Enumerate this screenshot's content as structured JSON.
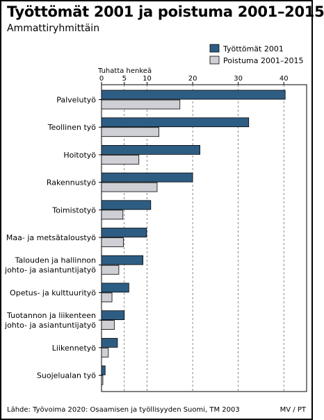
{
  "chart_data": {
    "type": "bar",
    "orientation": "horizontal",
    "title": "Työttömät 2001 ja poistuma 2001–2015",
    "subtitle": "Ammattiryhmittäin",
    "xlabel": "Tuhatta henkeä",
    "xlim": [
      0,
      45
    ],
    "xticks": [
      0,
      5,
      10,
      20,
      30,
      40
    ],
    "grid": "vertical dashed",
    "legend_position": "top-right",
    "categories": [
      [
        "Palvelutyö"
      ],
      [
        "Teollinen työ"
      ],
      [
        "Hoitotyö"
      ],
      [
        "Rakennustyö"
      ],
      [
        "Toimistotyö"
      ],
      [
        "Maa- ja metsätaloustyö"
      ],
      [
        "Talouden ja hallinnon",
        "johto- ja asiantuntijatyö"
      ],
      [
        "Opetus- ja kulttuurityö"
      ],
      [
        "Tuotannon ja liikenteen",
        "johto- ja asiantuntijatyö"
      ],
      [
        "Liikennetyö"
      ],
      [
        "Suojelualan työ"
      ]
    ],
    "series": [
      {
        "name": "Työttömät 2001",
        "color": "#2e5d84",
        "values": [
          40.3,
          32.3,
          21.6,
          20.0,
          10.8,
          9.9,
          9.1,
          6.0,
          5.0,
          3.5,
          0.8
        ]
      },
      {
        "name": "Poistuma 2001–2015",
        "color": "#cfcfd6",
        "values": [
          17.2,
          12.6,
          8.2,
          12.2,
          4.7,
          4.8,
          3.8,
          2.3,
          2.8,
          1.5,
          0.3
        ]
      }
    ]
  },
  "footer": {
    "source": "Lähde: Työvoima 2020: Osaamisen ja työllisyyden Suomi, TM 2003",
    "credit": "MV / PT"
  }
}
